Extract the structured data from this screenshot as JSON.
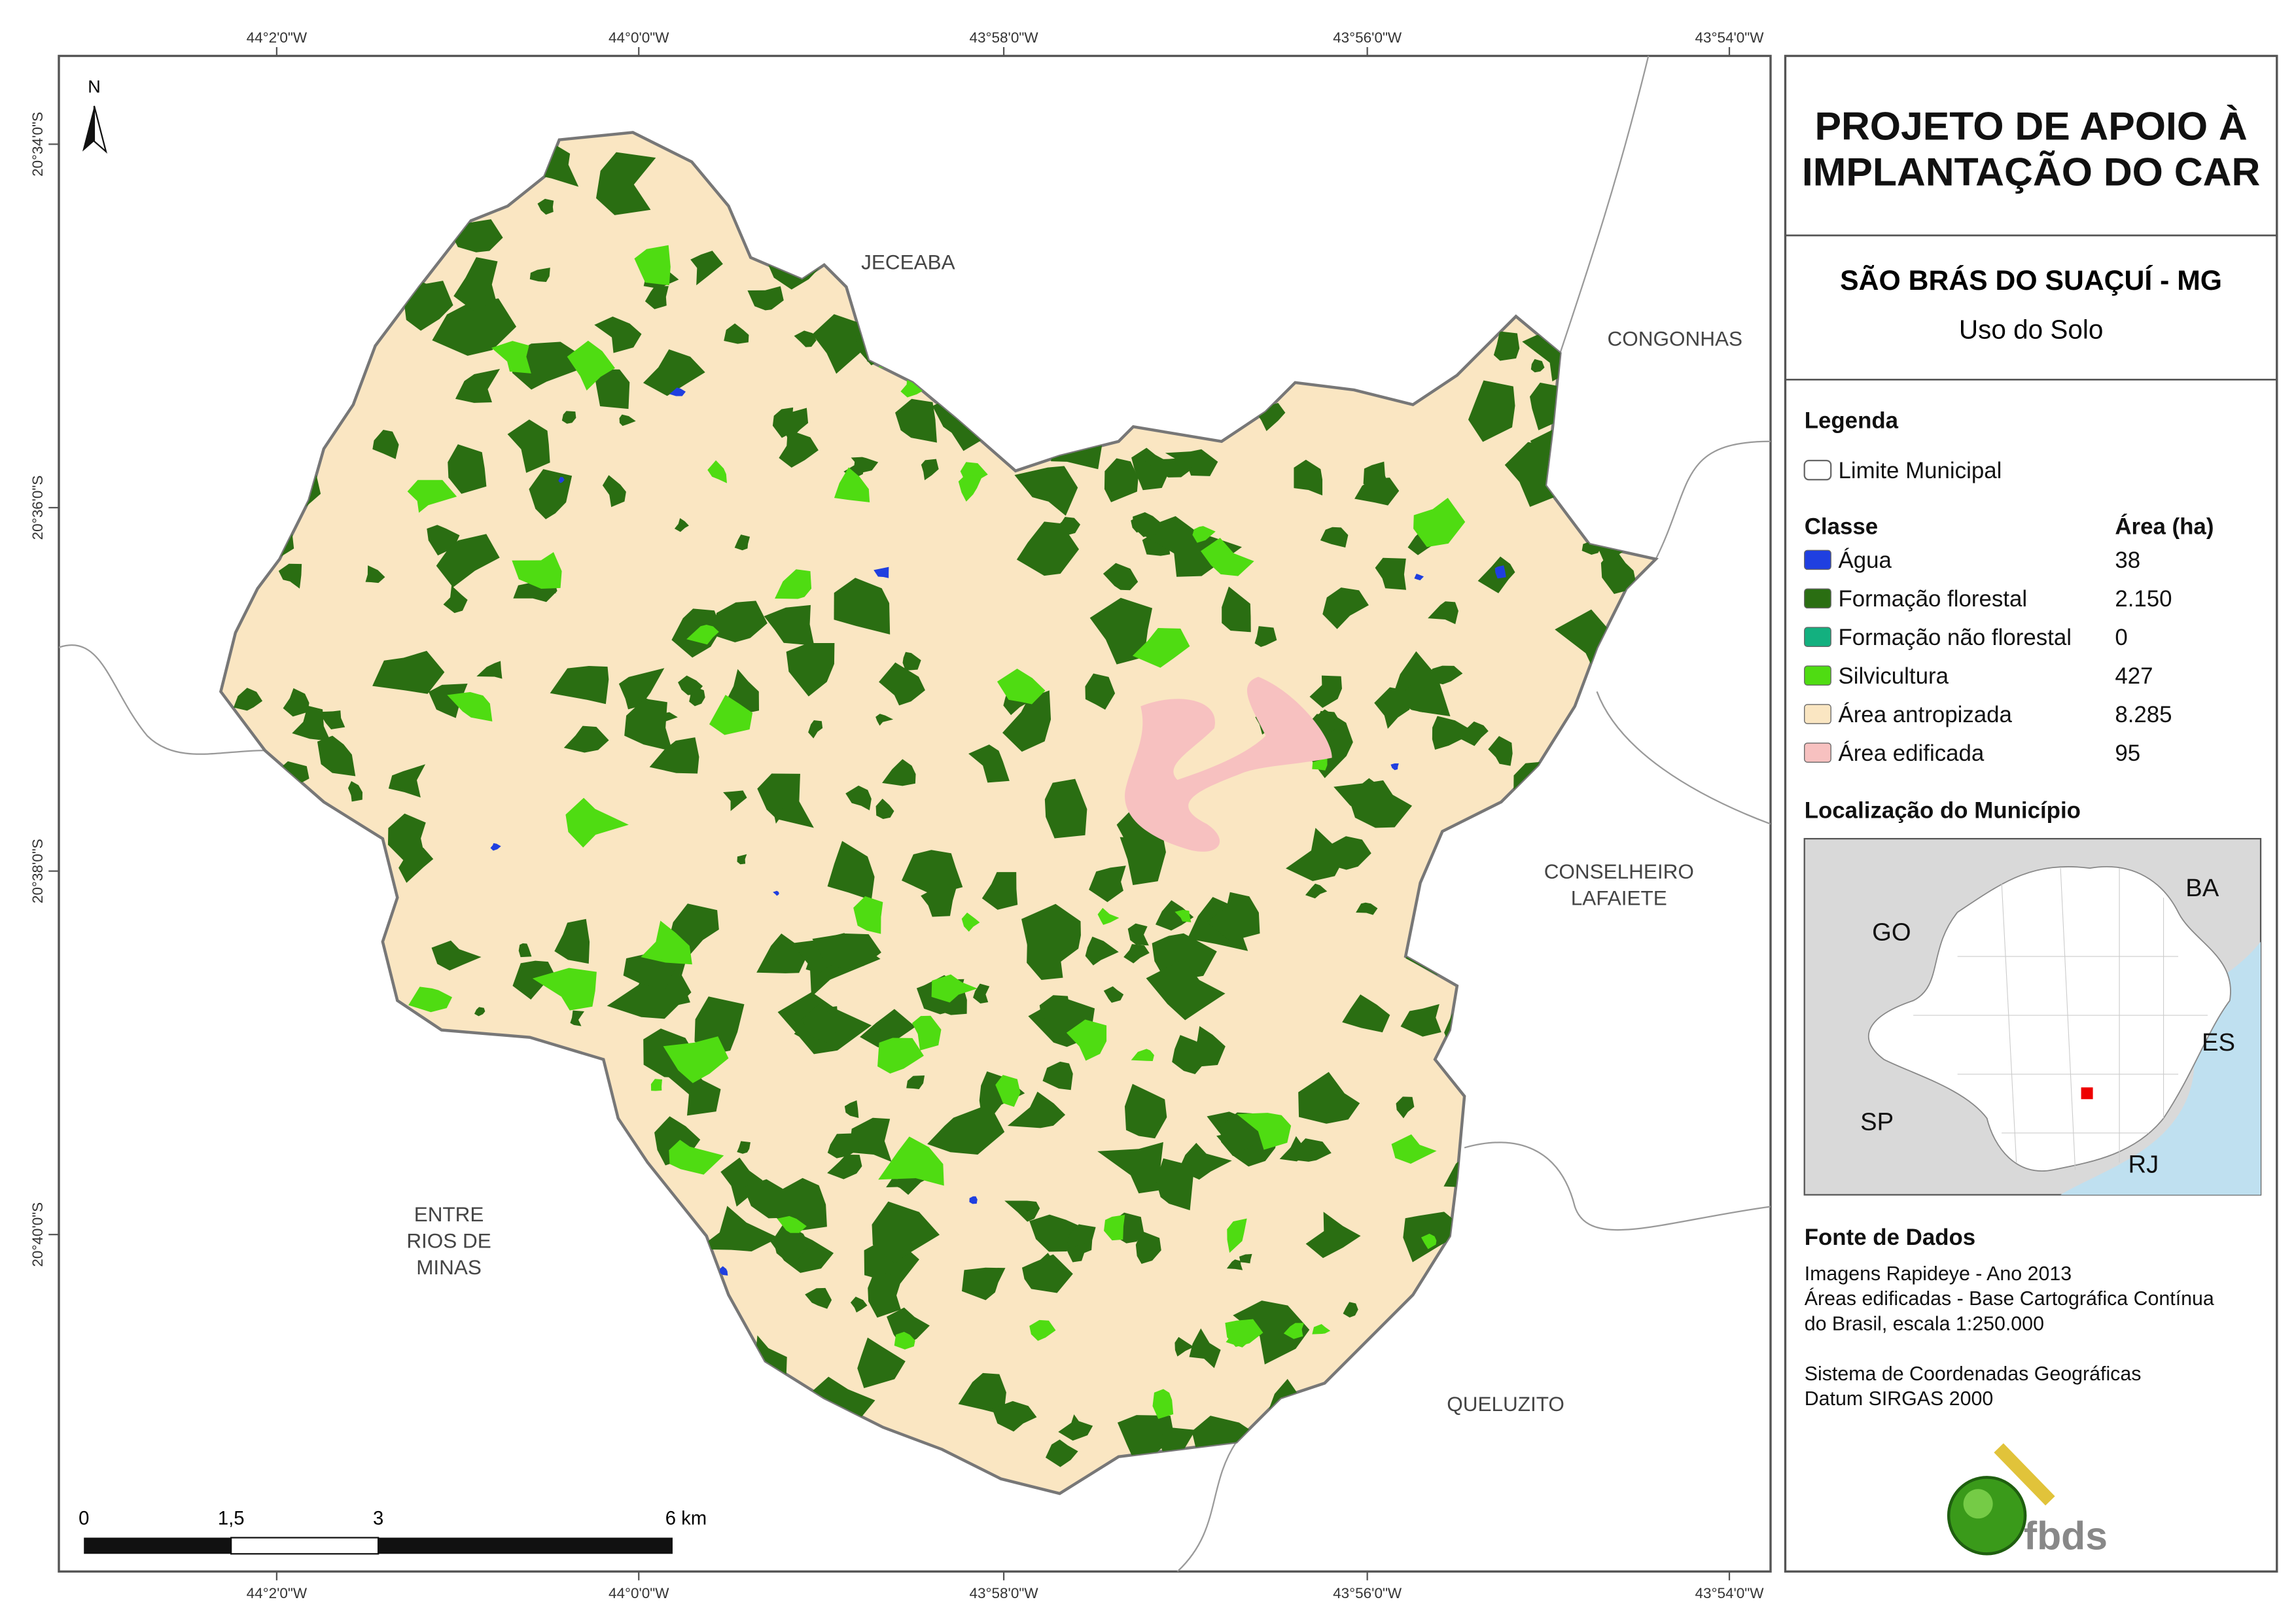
{
  "map": {
    "coordinates": {
      "top": [
        "44°2'0\"W",
        "44°0'0\"W",
        "43°58'0\"W",
        "43°56'0\"W",
        "43°54'0\"W"
      ],
      "bottom": [
        "44°2'0\"W",
        "44°0'0\"W",
        "43°58'0\"W",
        "43°56'0\"W",
        "43°54'0\"W"
      ],
      "left": [
        "20°34'0\"S",
        "20°36'0\"S",
        "20°38'0\"S",
        "20°40'0\"S"
      ]
    },
    "north": "N",
    "places": {
      "jeceaba": [
        "JECEABA"
      ],
      "congonhas": [
        "CONGONHAS"
      ],
      "conselheiro": [
        "CONSELHEIRO",
        "LAFAIETE"
      ],
      "entre_rios": [
        "ENTRE",
        "RIOS DE",
        "MINAS"
      ],
      "queluzito": [
        "QUELUZITO"
      ]
    },
    "scale_bar": [
      "0",
      "1,5",
      "3",
      "6 km"
    ]
  },
  "panel": {
    "title": [
      "PROJETO DE APOIO À",
      "IMPLANTAÇÃO DO CAR"
    ],
    "municipality": "SÃO BRÁS DO SUAÇUÍ - MG",
    "subtitle": "Uso do Solo",
    "legend": {
      "title": "Legenda",
      "boundary": "Limite Municipal",
      "class_header": "Classe",
      "area_header": "Área (ha)",
      "classes": [
        {
          "name": "Água",
          "color": "#1f3fe0",
          "area": "38"
        },
        {
          "name": "Formação florestal",
          "color": "#2a6e12",
          "area": "2.150"
        },
        {
          "name": "Formação não florestal",
          "color": "#13b07f",
          "area": "0"
        },
        {
          "name": "Silvicultura",
          "color": "#4fdc12",
          "area": "427"
        },
        {
          "name": "Área antropizada",
          "color": "#fae6c2",
          "area": "8.285"
        },
        {
          "name": "Área edificada",
          "color": "#f7c1c0",
          "area": "95"
        }
      ]
    },
    "location": {
      "title": "Localização do Município",
      "states": {
        "ba": "BA",
        "go": "GO",
        "es": "ES",
        "sp": "SP",
        "rj": "RJ"
      }
    },
    "sources": {
      "title": "Fonte de Dados",
      "lines": [
        "Imagens Rapideye - Ano 2013",
        "Áreas edificadas - Base Cartográfica Contínua",
        "do Brasil, escala 1:250.000",
        "Sistema de Coordenadas Geográficas",
        "Datum SIRGAS 2000"
      ]
    },
    "logo": "fbds"
  }
}
